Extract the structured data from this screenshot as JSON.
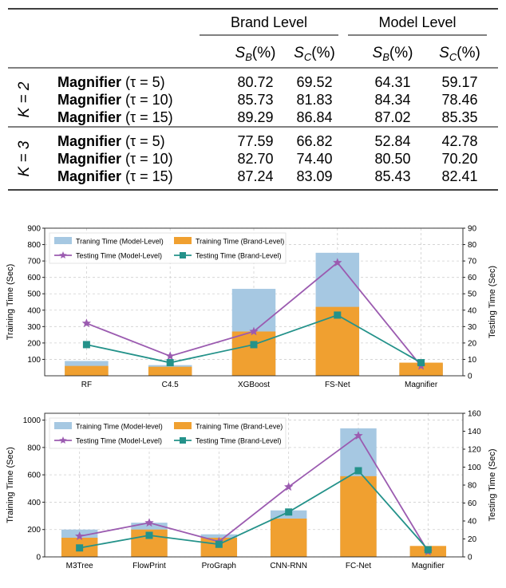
{
  "table": {
    "groups": [
      "Brand Level",
      "Model Level"
    ],
    "cols": [
      "S",
      "S",
      "S",
      "S"
    ],
    "col_subs": [
      "B",
      "C",
      "B",
      "C"
    ],
    "col_unit": "(%)",
    "blocks": [
      {
        "k_label": "K = 2",
        "rows": [
          {
            "method": "Magnifier",
            "tau": "(τ = 5)",
            "values": [
              "80.72",
              "69.52",
              "64.31",
              "59.17"
            ]
          },
          {
            "method": "Magnifier",
            "tau": "(τ = 10)",
            "values": [
              "85.73",
              "81.83",
              "84.34",
              "78.46"
            ]
          },
          {
            "method": "Magnifier",
            "tau": "(τ = 15)",
            "values": [
              "89.29",
              "86.84",
              "87.02",
              "85.35"
            ]
          }
        ]
      },
      {
        "k_label": "K = 3",
        "rows": [
          {
            "method": "Magnifier",
            "tau": "(τ = 5)",
            "values": [
              "77.59",
              "66.82",
              "52.84",
              "42.78"
            ]
          },
          {
            "method": "Magnifier",
            "tau": "(τ = 10)",
            "values": [
              "82.70",
              "74.40",
              "80.50",
              "70.20"
            ]
          },
          {
            "method": "Magnifier",
            "tau": "(τ = 15)",
            "values": [
              "87.24",
              "83.09",
              "85.43",
              "82.41"
            ]
          }
        ]
      }
    ]
  },
  "colors": {
    "model_bar": "#a6c8e2",
    "brand_bar": "#f0a030",
    "model_line": "#9b5bb0",
    "brand_line": "#24928a"
  },
  "chart_data": [
    {
      "type": "bar",
      "categories": [
        "RF",
        "C4.5",
        "XGBoost",
        "FS-Net",
        "Magnifier"
      ],
      "series": [
        {
          "name": "Traning Time (Model-Level)",
          "kind": "bar",
          "values": [
            90,
            65,
            530,
            750,
            75
          ]
        },
        {
          "name": "Training Time (Brand-Level)",
          "kind": "bar",
          "values": [
            60,
            55,
            270,
            420,
            80
          ]
        },
        {
          "name": "Testing Time (Model-Level)",
          "kind": "line",
          "axis": "right",
          "values": [
            32,
            12,
            27,
            69,
            6
          ]
        },
        {
          "name": "Testing Time (Brand-Level)",
          "kind": "line",
          "axis": "right",
          "values": [
            19,
            8,
            19,
            37,
            8
          ]
        }
      ],
      "ylabel": "Training Time (Sec)",
      "y2label": "Testing Time (Sec)",
      "ylim": [
        0,
        900
      ],
      "y2lim": [
        0,
        90
      ],
      "yticks": [
        100,
        200,
        300,
        400,
        500,
        600,
        700,
        800,
        900
      ],
      "y2ticks": [
        0,
        10,
        20,
        30,
        40,
        50,
        60,
        70,
        80,
        90
      ],
      "legend": "top-left",
      "grid": true
    },
    {
      "type": "bar",
      "categories": [
        "M3Tree",
        "FlowPrint",
        "ProGraph",
        "CNN-RNN",
        "FC-Net",
        "Magnifier"
      ],
      "series": [
        {
          "name": "Training Time (Model-level)",
          "kind": "bar",
          "values": [
            200,
            250,
            165,
            340,
            940,
            75
          ]
        },
        {
          "name": "Training Time (Brand-Leve)",
          "kind": "bar",
          "values": [
            140,
            200,
            140,
            280,
            590,
            80
          ]
        },
        {
          "name": "Testing Time (Model-Level)",
          "kind": "line",
          "axis": "right",
          "values": [
            23,
            38,
            17,
            78,
            135,
            6
          ]
        },
        {
          "name": "Testing Time (Brand-Level)",
          "kind": "line",
          "axis": "right",
          "values": [
            10,
            24,
            14,
            50,
            96,
            8
          ]
        }
      ],
      "ylabel": "Training Time (Sec)",
      "y2label": "Testing Time (Sec)",
      "ylim": [
        0,
        1050
      ],
      "y2lim": [
        0,
        160
      ],
      "yticks": [
        0,
        200,
        400,
        600,
        800,
        1000
      ],
      "y2ticks": [
        0,
        20,
        40,
        60,
        80,
        100,
        120,
        140,
        160
      ],
      "legend": "top-left",
      "grid": true
    }
  ]
}
